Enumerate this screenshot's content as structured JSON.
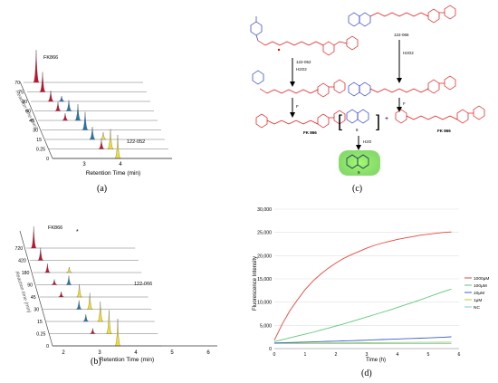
{
  "panels": {
    "a": {
      "label": "(a)",
      "xlabel": "Retention Time (min)",
      "ylabel": "Reaction time (min)",
      "xticks": [
        "3",
        "4"
      ],
      "depth_ticks": [
        "0",
        "0.25",
        "15",
        "30",
        "45",
        "60",
        "90",
        "75",
        "70"
      ],
      "series_labels": [
        "FK866",
        "122-052"
      ]
    },
    "b": {
      "label": "(b)",
      "xlabel": "Retention Time (min)",
      "ylabel": "Reaction time (min)",
      "xticks": [
        "2",
        "3",
        "4",
        "5",
        "6"
      ],
      "depth_ticks": [
        "0",
        "0.25",
        "15",
        "30",
        "45",
        "90",
        "180",
        "420",
        "720"
      ],
      "series_labels": [
        "FK866",
        "122-066"
      ],
      "star": "*"
    },
    "c": {
      "label": "(c)",
      "compounds": [
        "122-052",
        "FK 866",
        "122-066",
        "FK 866",
        "8",
        "9"
      ],
      "reagents": [
        "H2O2",
        "F",
        "H2O2",
        "F",
        "H2O"
      ],
      "plus": "+"
    },
    "d": {
      "label": "(d)",
      "chart_data": {
        "type": "line",
        "xlabel": "Time (h)",
        "ylabel": "Fluorescence Intensity",
        "xlim": [
          0,
          6
        ],
        "ylim": [
          0,
          30000
        ],
        "xticks": [
          "0",
          "1",
          "2",
          "3",
          "4",
          "5",
          "6"
        ],
        "yticks": [
          "0",
          "5,000",
          "10,000",
          "15,000",
          "20,000",
          "25,000",
          "30,000"
        ],
        "grid": true,
        "legend": "right",
        "x": [
          0,
          0.25,
          0.5,
          0.75,
          1,
          1.25,
          1.5,
          1.75,
          2,
          2.25,
          2.5,
          2.75,
          3,
          3.25,
          3.5,
          3.75,
          4,
          4.25,
          4.5,
          4.75,
          5,
          5.25,
          5.5,
          5.75
        ],
        "series": [
          {
            "name": "1000μM",
            "color": "#e8453c",
            "values": [
              1800,
              5200,
              8100,
              10500,
              12700,
              14500,
              16000,
              17300,
              18400,
              19400,
              20200,
              20900,
              21600,
              22200,
              22700,
              23100,
              23500,
              23800,
              24100,
              24400,
              24600,
              24800,
              25000,
              25100
            ]
          },
          {
            "name": "100μM",
            "color": "#5ec87a",
            "values": [
              1500,
              1900,
              2300,
              2700,
              3100,
              3500,
              3950,
              4400,
              4850,
              5300,
              5800,
              6300,
              6800,
              7300,
              7800,
              8300,
              8850,
              9400,
              9950,
              10500,
              11100,
              11700,
              12300,
              12800
            ]
          },
          {
            "name": "10μM",
            "color": "#3b5fcf",
            "values": [
              1200,
              1250,
              1300,
              1350,
              1400,
              1450,
              1500,
              1550,
              1600,
              1650,
              1700,
              1760,
              1820,
              1880,
              1940,
              2000,
              2060,
              2120,
              2180,
              2240,
              2300,
              2380,
              2460,
              2540
            ]
          },
          {
            "name": "1μM",
            "color": "#b6cf3a",
            "values": [
              1150,
              1160,
              1170,
              1180,
              1190,
              1200,
              1210,
              1220,
              1230,
              1240,
              1250,
              1260,
              1270,
              1280,
              1290,
              1300,
              1310,
              1320,
              1330,
              1340,
              1350,
              1360,
              1370,
              1380
            ]
          },
          {
            "name": "NC",
            "color": "#7ec8e3",
            "values": [
              1100,
              1100,
              1100,
              1100,
              1100,
              1100,
              1100,
              1100,
              1100,
              1100,
              1100,
              1100,
              1100,
              1100,
              1100,
              1100,
              1100,
              1100,
              1100,
              1100,
              1100,
              1100,
              1100,
              1100
            ]
          }
        ]
      }
    }
  },
  "colors": {
    "red": "#c8102e",
    "blue": "#1f78b4",
    "yellow": "#f2e12c",
    "struct_red": "#e01010",
    "struct_blue": "#2233cc",
    "glow": "#7fe05a"
  }
}
